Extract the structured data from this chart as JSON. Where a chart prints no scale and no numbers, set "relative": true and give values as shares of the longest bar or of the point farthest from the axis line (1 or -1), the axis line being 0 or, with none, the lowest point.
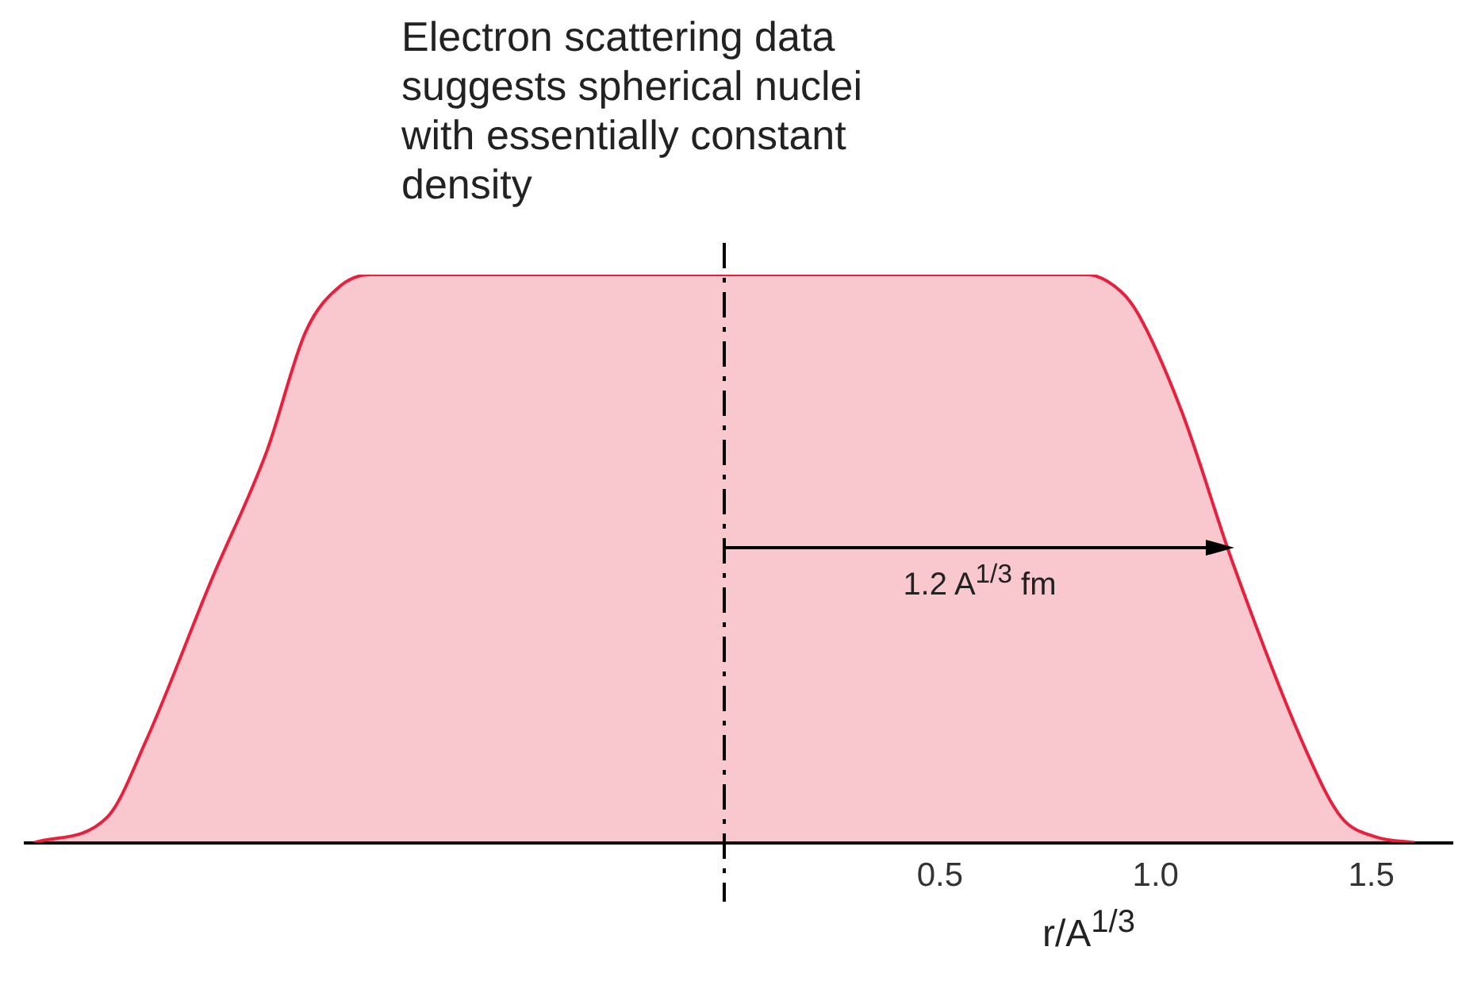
{
  "chart_data": {
    "type": "area",
    "title": "Electron scattering data suggests spherical nuclei with essentially constant density",
    "xlabel": "r/A$^{1/3}$",
    "relative": true,
    "x": [
      -1.6,
      -1.43,
      -1.34,
      -1.19,
      -1.06,
      -0.97,
      -0.89,
      -0.82,
      0.84,
      0.92,
      0.96,
      1.06,
      1.18,
      1.35,
      1.43,
      1.51,
      1.6
    ],
    "series": [
      {
        "color": "#e8203c",
        "values": [
          0,
          0.045,
          0.18,
          0.46,
          0.69,
          0.9,
          0.98,
          1,
          1,
          0.97,
          0.93,
          0.76,
          0.49,
          0.16,
          0.045,
          0.01,
          0
        ]
      }
    ],
    "xlim": [
      -1.62,
      1.69
    ],
    "xticks": [
      {
        "value": 0.5,
        "label": "0.5"
      },
      {
        "value": 1,
        "label": "1.0"
      },
      {
        "value": 1.5,
        "label": "1.5"
      }
    ],
    "grid": false,
    "legend": false,
    "marker": "none",
    "line_style": "solid",
    "ref_lines": [
      {
        "axis": "x",
        "value": 0,
        "color": "#000000",
        "line_style": "dashed"
      }
    ],
    "annotations": [
      "1.2 A$^{1/3}$ fm"
    ]
  }
}
